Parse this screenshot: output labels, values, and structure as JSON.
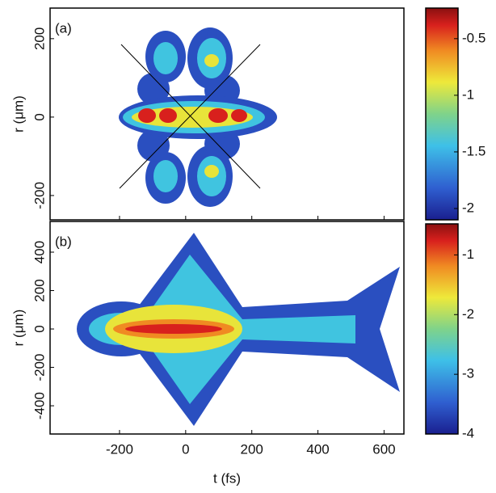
{
  "chart_data": [
    {
      "type": "contour",
      "panel_label": "(a)",
      "ylabel": "r (μm)",
      "xlim": [
        -410,
        660
      ],
      "xticks": [
        -200,
        0,
        200,
        400,
        600
      ],
      "ylim": [
        -262,
        278
      ],
      "yticks": [
        200,
        0,
        -200
      ],
      "colorbar": {
        "clim": [
          -2.1,
          -0.23
        ],
        "ticks": [
          -0.5,
          -1,
          -1.5,
          -2
        ]
      }
    },
    {
      "type": "contour",
      "panel_label": "(b)",
      "ylabel": "r (μm)",
      "xlabel": "t (fs)",
      "xlim": [
        -410,
        660
      ],
      "xticks": [
        -200,
        0,
        200,
        400,
        600
      ],
      "ylim": [
        -547,
        560
      ],
      "yticks": [
        400,
        200,
        0,
        -200,
        -400
      ],
      "colorbar": {
        "clim": [
          -4,
          -0.48
        ],
        "ticks": [
          -1,
          -2,
          -3,
          -4
        ]
      }
    }
  ]
}
